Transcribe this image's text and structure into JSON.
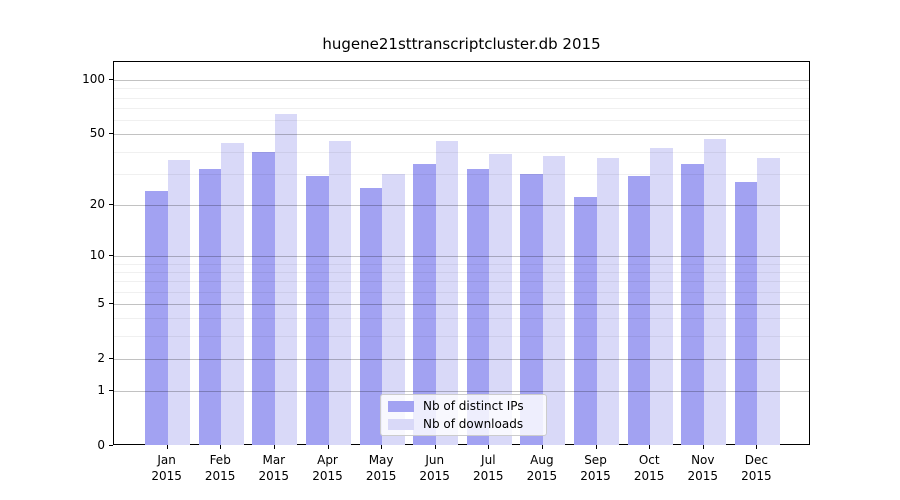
{
  "chart_data": {
    "type": "bar",
    "title": "hugene21sttranscriptcluster.db 2015",
    "categories": [
      "Jan 2015",
      "Feb 2015",
      "Mar 2015",
      "Apr 2015",
      "May 2015",
      "Jun 2015",
      "Jul 2015",
      "Aug 2015",
      "Sep 2015",
      "Oct 2015",
      "Nov 2015",
      "Dec 2015"
    ],
    "x_tick_months": [
      "Jan",
      "Feb",
      "Mar",
      "Apr",
      "May",
      "Jun",
      "Jul",
      "Aug",
      "Sep",
      "Oct",
      "Nov",
      "Dec"
    ],
    "x_tick_year": "2015",
    "series": [
      {
        "name": "Nb of distinct IPs",
        "color": "#a2a2f2",
        "values": [
          24,
          32,
          40,
          29,
          25,
          34,
          32,
          30,
          22,
          29,
          34,
          27
        ]
      },
      {
        "name": "Nb of downloads",
        "color": "#d9d9f8",
        "values": [
          36,
          45,
          65,
          46,
          30,
          46,
          39,
          38,
          37,
          42,
          47,
          37
        ]
      }
    ],
    "yscale": "log1p",
    "y_ticks": [
      0,
      1,
      2,
      5,
      10,
      20,
      50,
      100
    ],
    "y_minor_gridlines": [
      3,
      4,
      6,
      7,
      8,
      9,
      30,
      40,
      60,
      70,
      80,
      90
    ],
    "ylim": [
      0,
      126
    ],
    "grid": true,
    "legend_position": "lower center"
  }
}
